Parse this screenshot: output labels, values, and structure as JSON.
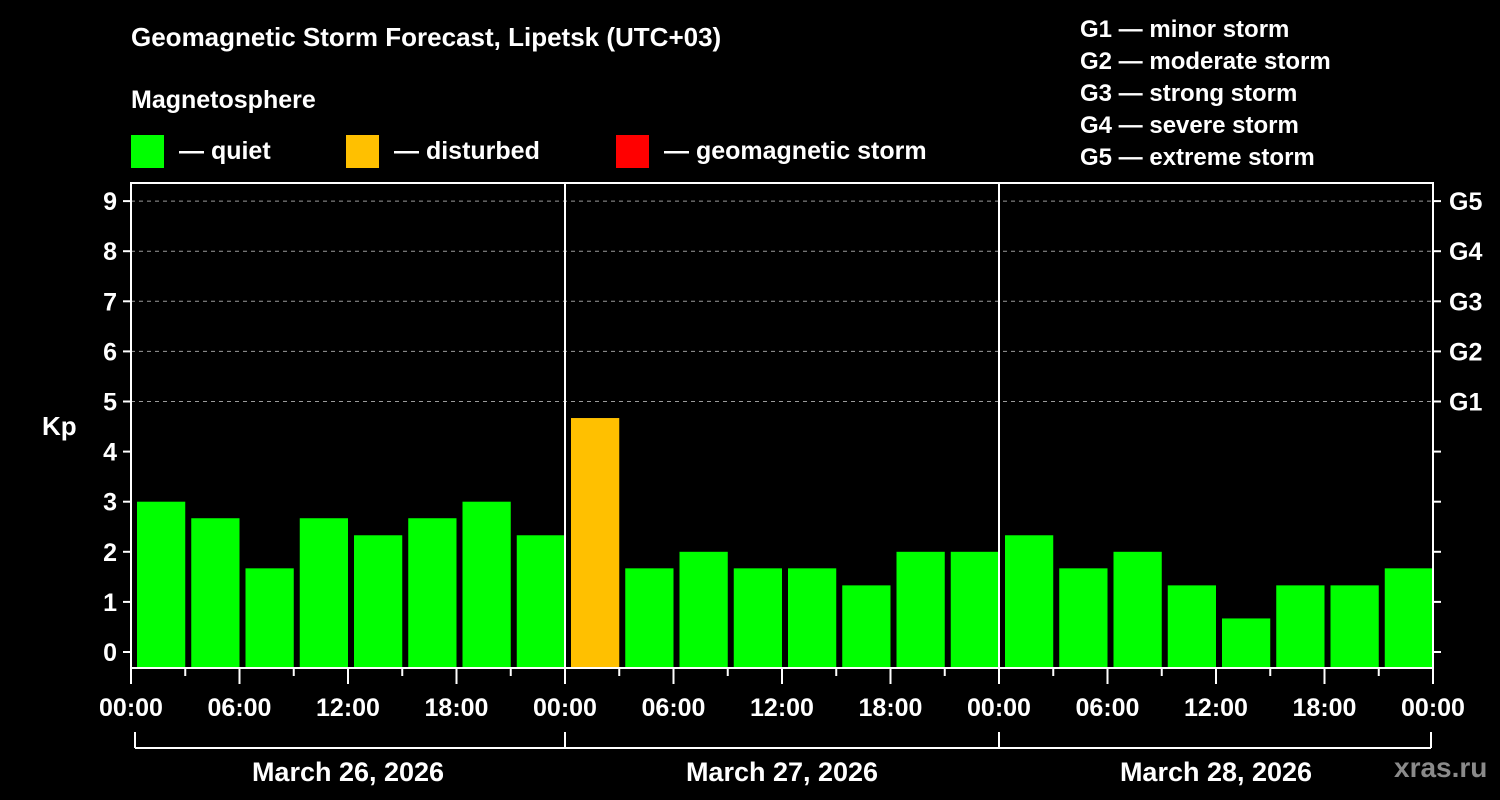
{
  "header": {
    "title": "Geomagnetic Storm Forecast, Lipetsk (UTC+03)",
    "subtitle": "Magnetosphere"
  },
  "legend": [
    {
      "label": "— quiet",
      "color": "#00ff00"
    },
    {
      "label": "— disturbed",
      "color": "#ffc000"
    },
    {
      "label": "— geomagnetic storm",
      "color": "#ff0000"
    }
  ],
  "g_scale_legend": [
    "G1 — minor storm",
    "G2 — moderate storm",
    "G3 — strong storm",
    "G4 — severe storm",
    "G5 — extreme storm"
  ],
  "axes": {
    "ylabel": "Kp",
    "y_ticks": [
      "0",
      "1",
      "2",
      "3",
      "4",
      "5",
      "6",
      "7",
      "8",
      "9"
    ],
    "right_ticks": [
      "G1",
      "G2",
      "G3",
      "G4",
      "G5"
    ],
    "x_ticks": [
      "00:00",
      "06:00",
      "12:00",
      "18:00",
      "00:00",
      "06:00",
      "12:00",
      "18:00",
      "00:00",
      "06:00",
      "12:00",
      "18:00",
      "00:00"
    ],
    "dates": [
      "March 26, 2026",
      "March 27, 2026",
      "March 28, 2026"
    ]
  },
  "watermark": "xras.ru",
  "colors": {
    "quiet": "#00ff00",
    "disturbed": "#ffc000",
    "storm": "#ff0000",
    "background": "#000000",
    "grid": "#9a9a9a"
  },
  "chart_data": {
    "type": "bar",
    "title": "Geomagnetic Storm Forecast, Lipetsk (UTC+03)",
    "subtitle": "Magnetosphere",
    "xlabel": "",
    "ylabel": "Kp",
    "ylim": [
      0,
      9
    ],
    "secondary_y_labels": {
      "5": "G1",
      "6": "G2",
      "7": "G3",
      "8": "G4",
      "9": "G5"
    },
    "grid": "dashed horizontal at Kp 5-9",
    "legend_position": "top",
    "interval_hours": 3,
    "categories": [
      "Mar 26 00-03",
      "Mar 26 03-06",
      "Mar 26 06-09",
      "Mar 26 09-12",
      "Mar 26 12-15",
      "Mar 26 15-18",
      "Mar 26 18-21",
      "Mar 26 21-24",
      "Mar 27 00-03",
      "Mar 27 03-06",
      "Mar 27 06-09",
      "Mar 27 09-12",
      "Mar 27 12-15",
      "Mar 27 15-18",
      "Mar 27 18-21",
      "Mar 27 21-24",
      "Mar 28 00-03",
      "Mar 28 03-06",
      "Mar 28 06-09",
      "Mar 28 09-12",
      "Mar 28 12-15",
      "Mar 28 15-18",
      "Mar 28 18-21",
      "Mar 28 21-24"
    ],
    "values": [
      3.0,
      2.67,
      1.67,
      2.67,
      2.33,
      2.67,
      3.0,
      2.33,
      4.67,
      1.67,
      2.0,
      1.67,
      1.67,
      1.33,
      2.0,
      2.0,
      2.33,
      1.67,
      2.0,
      1.33,
      0.67,
      1.33,
      1.33,
      1.67
    ],
    "status": [
      "quiet",
      "quiet",
      "quiet",
      "quiet",
      "quiet",
      "quiet",
      "quiet",
      "quiet",
      "disturbed",
      "quiet",
      "quiet",
      "quiet",
      "quiet",
      "quiet",
      "quiet",
      "quiet",
      "quiet",
      "quiet",
      "quiet",
      "quiet",
      "quiet",
      "quiet",
      "quiet",
      "quiet"
    ],
    "legend": [
      "quiet",
      "disturbed",
      "geomagnetic storm"
    ]
  }
}
